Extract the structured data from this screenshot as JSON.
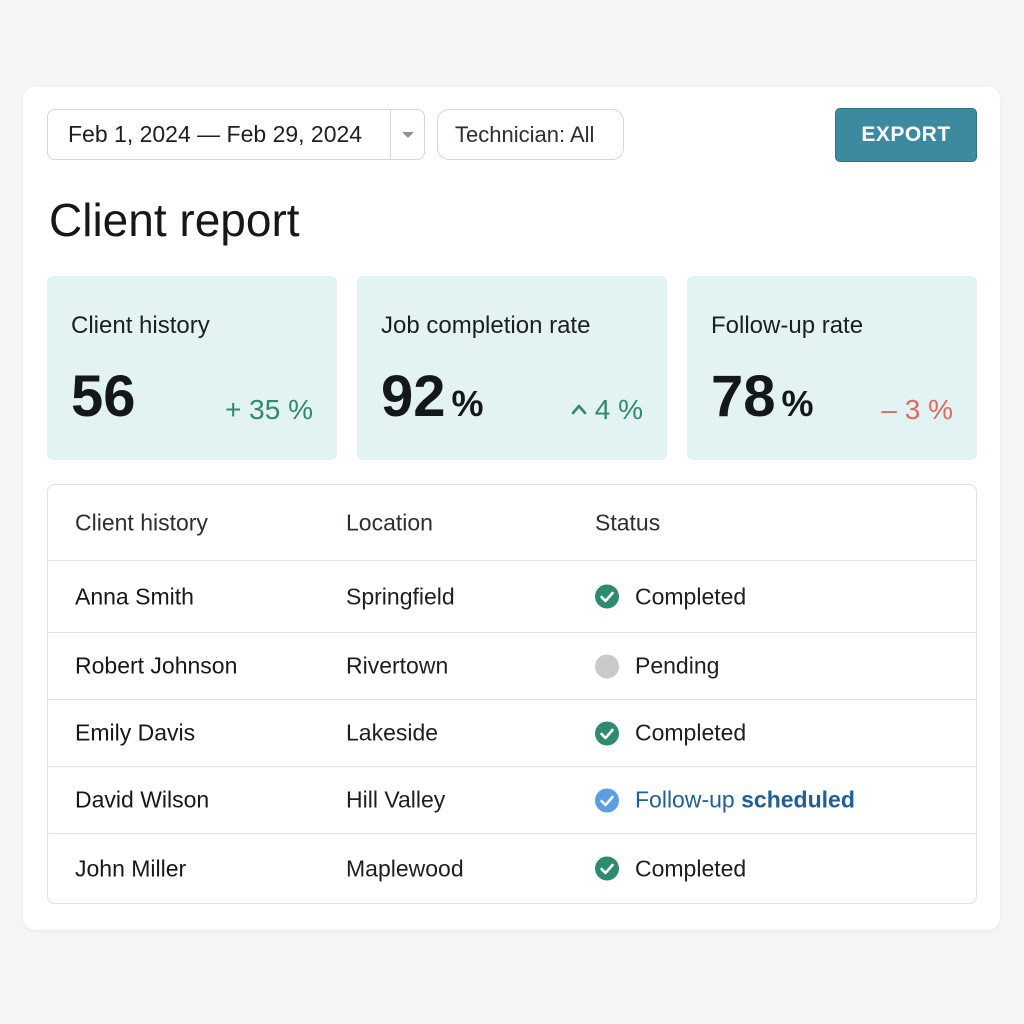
{
  "toolbar": {
    "date_range": "Feb 1, 2024 — Feb 29, 2024",
    "technician_filter": "Technician: All",
    "export_label": "EXPORT"
  },
  "page": {
    "title": "Client report"
  },
  "stats": [
    {
      "label": "Client history",
      "value": "56",
      "unit": "",
      "delta": "+ 35 %",
      "trend": "up"
    },
    {
      "label": "Job completion rate",
      "value": "92",
      "unit": "%",
      "delta": "4 %",
      "trend": "up"
    },
    {
      "label": "Follow-up rate",
      "value": "78",
      "unit": "%",
      "delta": "– 3 %",
      "trend": "down"
    }
  ],
  "table": {
    "columns": [
      "Client history",
      "Location",
      "Status"
    ],
    "rows": [
      {
        "name": "Anna Smith",
        "location": "Springfield",
        "status": "Completed",
        "status_type": "completed"
      },
      {
        "name": "Robert Johnson",
        "location": "Rivertown",
        "status": "Pending",
        "status_type": "pending"
      },
      {
        "name": "Emily Davis",
        "location": "Lakeside",
        "status": "Completed",
        "status_type": "completed"
      },
      {
        "name": "David Wilson",
        "location": "Hill Valley",
        "status": "Follow-up",
        "status_extra": "scheduled",
        "status_type": "followup"
      },
      {
        "name": "John Miller",
        "location": "Maplewood",
        "status": "Completed",
        "status_type": "completed"
      }
    ]
  },
  "colors": {
    "accent": "#3d8aa0",
    "card_bg": "#e3f3f3",
    "positive": "#2f8a6a",
    "negative": "#de6b61",
    "completed": "#2e8b6d",
    "pending": "#c8cacc",
    "followup": "#5b9ee6"
  }
}
